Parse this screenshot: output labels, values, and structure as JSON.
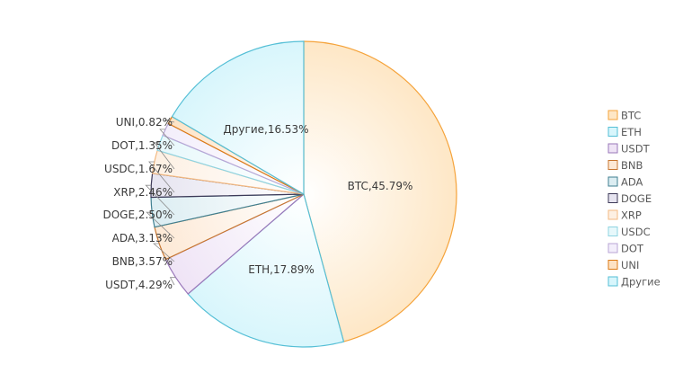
{
  "chart_data": {
    "type": "pie",
    "title": "",
    "legend_position": "right",
    "slices": [
      {
        "name": "BTC",
        "value": 45.79,
        "label": "BTC,45.79%",
        "fill": "#fee7c6",
        "stroke": "#f5a33a"
      },
      {
        "name": "ETH",
        "value": 17.89,
        "label": "ETH,17.89%",
        "fill": "#d8f6fc",
        "stroke": "#55bfd6"
      },
      {
        "name": "USDT",
        "value": 4.29,
        "label": "USDT,4.29%",
        "fill": "#efe4f6",
        "stroke": "#9a78ba"
      },
      {
        "name": "BNB",
        "value": 3.57,
        "label": "BNB,3.57%",
        "fill": "#fde9d6",
        "stroke": "#c8762f"
      },
      {
        "name": "ADA",
        "value": 3.13,
        "label": "ADA,3.13%",
        "fill": "#dcedf2",
        "stroke": "#3f7f90"
      },
      {
        "name": "DOGE",
        "value": 2.5,
        "label": "DOGE,2.50%",
        "fill": "#e6e4f0",
        "stroke": "#3d3a58"
      },
      {
        "name": "XRP",
        "value": 2.46,
        "label": "XRP,2.46%",
        "fill": "#fdf0e3",
        "stroke": "#f3b982"
      },
      {
        "name": "USDC",
        "value": 1.67,
        "label": "USDC,1.67%",
        "fill": "#e7f8fb",
        "stroke": "#8fd4e2"
      },
      {
        "name": "DOT",
        "value": 1.35,
        "label": "DOT,1.35%",
        "fill": "#f3eefb",
        "stroke": "#b8a6d6"
      },
      {
        "name": "UNI",
        "value": 0.82,
        "label": "UNI,0.82%",
        "fill": "#fde2c4",
        "stroke": "#dd7a14"
      },
      {
        "name": "Другие",
        "value": 16.53,
        "label": "Другие,16.53%",
        "fill": "#d8f6fc",
        "stroke": "#55bfd6"
      }
    ]
  }
}
